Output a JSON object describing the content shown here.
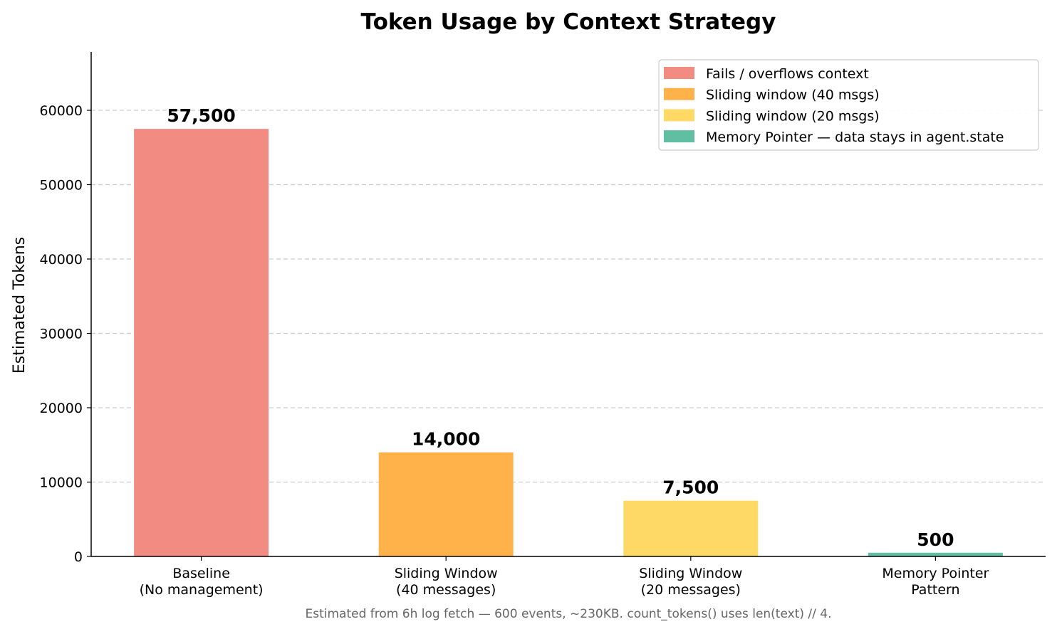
{
  "chart_data": {
    "type": "bar",
    "title": "Token Usage by Context Strategy",
    "xlabel": "",
    "ylabel": "Estimated Tokens",
    "categories": [
      "Baseline\n(No management)",
      "Sliding Window\n(40 messages)",
      "Sliding Window\n(20 messages)",
      "Memory Pointer\nPattern"
    ],
    "values": [
      57500,
      14000,
      7500,
      500
    ],
    "data_labels": [
      "57,500",
      "14,000",
      "7,500",
      "500"
    ],
    "colors": [
      "#F28B82",
      "#FFB14A",
      "#FFD966",
      "#5FBFA0"
    ],
    "ylim": [
      0,
      67850
    ],
    "yticks": [
      0,
      10000,
      20000,
      30000,
      40000,
      50000,
      60000
    ],
    "grid": "y, dashed",
    "legend_position": "top-right",
    "legend": [
      {
        "label": "Fails / overflows context",
        "color": "#F28B82"
      },
      {
        "label": "Sliding window (40 msgs)",
        "color": "#FFB14A"
      },
      {
        "label": "Sliding window (20 msgs)",
        "color": "#FFD966"
      },
      {
        "label": "Memory Pointer — data stays in agent.state",
        "color": "#5FBFA0"
      }
    ],
    "footnote": "Estimated from 6h log fetch — 600 events, ~230KB. count_tokens() uses len(text) // 4."
  }
}
